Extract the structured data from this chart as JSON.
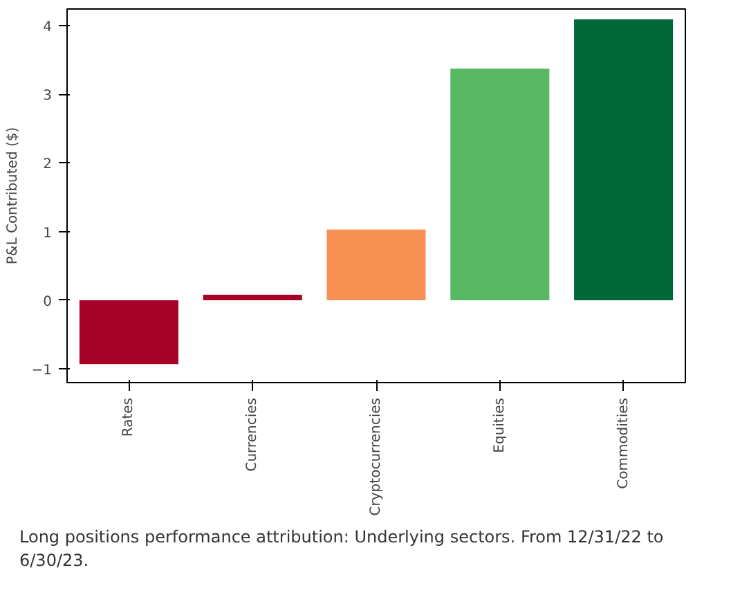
{
  "chart_data": {
    "type": "bar",
    "ylabel": "P&L Contributed ($)",
    "categories": [
      "Rates",
      "Currencies",
      "Cryptocurrencies",
      "Equities",
      "Commodities"
    ],
    "values": [
      -0.93,
      0.08,
      1.03,
      3.37,
      4.09
    ],
    "colors": [
      "#a50026",
      "#a50026",
      "#f99155",
      "#56b862",
      "#006837"
    ],
    "ylim": [
      -1.2,
      4.24
    ],
    "yticks": [
      {
        "value": -1,
        "label": "−1"
      },
      0,
      1,
      2,
      3,
      4
    ],
    "grid": false,
    "annotations": [
      "Long positions performance attribution: Underlying sectors. From 12/31/22 to 6/30/23."
    ]
  }
}
